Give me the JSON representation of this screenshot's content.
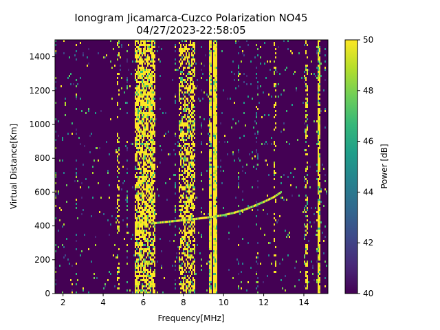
{
  "chart_data": {
    "type": "heatmap",
    "title_line1": "Ionogram Jicamarca-Cuzco Polarization NO45",
    "title_line2": "04/27/2023-22:58:05",
    "xlabel": "Frequency[MHz]",
    "ylabel": "Virtual Distance[Km]",
    "xlim": [
      1.6,
      15.2
    ],
    "ylim": [
      0,
      1500
    ],
    "xticks": [
      2,
      4,
      6,
      8,
      10,
      12,
      14
    ],
    "yticks": [
      0,
      200,
      400,
      600,
      800,
      1000,
      1200,
      1400
    ],
    "colorbar": {
      "label": "Power [dB]",
      "range": [
        40,
        50
      ],
      "ticks": [
        40,
        42,
        44,
        46,
        48,
        50
      ],
      "colormap": "viridis",
      "colors": [
        "#440154",
        "#482878",
        "#3e4989",
        "#31688e",
        "#26828e",
        "#1f9e89",
        "#35b779",
        "#6ece58",
        "#b5de2b",
        "#fde725"
      ]
    },
    "background_db": 40,
    "interference_bands": [
      {
        "f_min": 5.6,
        "f_max": 6.6,
        "density": 0.72
      },
      {
        "f_min": 7.8,
        "f_max": 8.6,
        "density": 0.55
      },
      {
        "f_min": 9.5,
        "f_max": 9.7,
        "density": 0.97
      },
      {
        "f_min": 9.3,
        "f_max": 9.4,
        "density": 0.9
      },
      {
        "f_min": 14.7,
        "f_max": 14.8,
        "density": 0.9
      },
      {
        "f_min": 15.0,
        "f_max": 15.05,
        "density": 0.9
      },
      {
        "f_min": 14.1,
        "f_max": 14.2,
        "density": 0.45
      },
      {
        "f_min": 12.5,
        "f_max": 12.6,
        "density": 0.25
      },
      {
        "f_min": 4.7,
        "f_max": 4.8,
        "density": 0.35
      },
      {
        "f_min": 3.7,
        "f_max": 3.75,
        "density": 0.3
      }
    ],
    "trace": {
      "x": [
        6.4,
        7.0,
        7.5,
        8.0,
        8.5,
        9.0,
        9.5,
        10.0,
        10.5,
        11.0,
        11.5,
        12.0,
        12.5,
        12.9
      ],
      "y": [
        412,
        420,
        426,
        432,
        438,
        445,
        452,
        462,
        475,
        492,
        515,
        540,
        568,
        600
      ]
    }
  }
}
